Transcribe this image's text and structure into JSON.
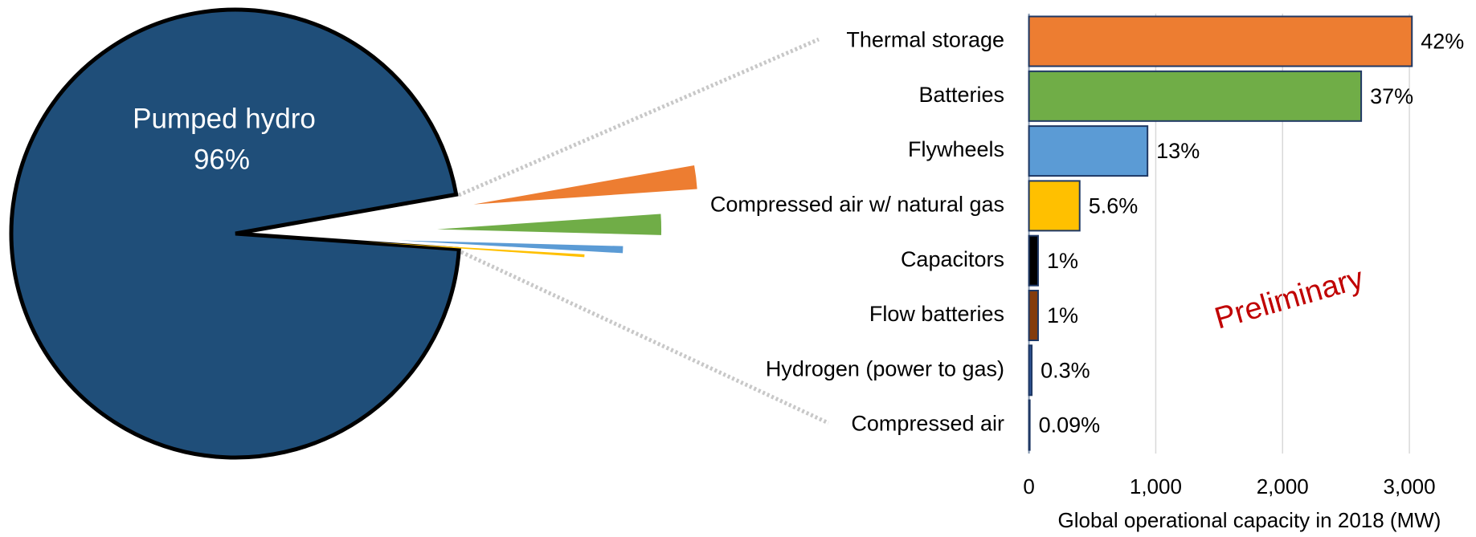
{
  "chart_data": [
    {
      "type": "pie",
      "categories": [
        "Pumped hydro",
        null,
        null,
        null,
        null
      ],
      "values": [
        96,
        1.7,
        1.5,
        0.5,
        0.2
      ],
      "value_labels": [
        "96%",
        null,
        null,
        null,
        null
      ],
      "colors": [
        "#1F4E79",
        "#ED7D31",
        "#70AD47",
        "#5B9BD5",
        "#FFC000"
      ]
    },
    {
      "type": "bar",
      "orientation": "horizontal",
      "categories": [
        "Thermal storage",
        "Batteries",
        "Flywheels",
        "Compressed air w/ natural gas",
        "Capacitors",
        "Flow batteries",
        "Hydrogen (power to gas)",
        "Compressed air"
      ],
      "values": [
        3020,
        2620,
        935,
        400,
        72,
        72,
        22,
        6.5
      ],
      "value_labels": [
        "42%",
        "37%",
        "13%",
        "5.6%",
        "1%",
        "1%",
        "0.3%",
        "0.09%"
      ],
      "colors": [
        "#ED7D31",
        "#70AD47",
        "#5B9BD5",
        "#FFC000",
        "#000000",
        "#843C0C",
        "#2F5597",
        "#203864"
      ],
      "xlim": [
        0,
        3500
      ],
      "xticks": [
        0,
        {
          "value": 1000,
          "label": "1,000"
        },
        {
          "value": 2000,
          "label": "2,000"
        },
        {
          "value": 3000,
          "label": "3,000"
        }
      ],
      "xlabel": "Global operational capacity in 2018 (MW)",
      "annotation": "Preliminary",
      "grid": true
    }
  ]
}
